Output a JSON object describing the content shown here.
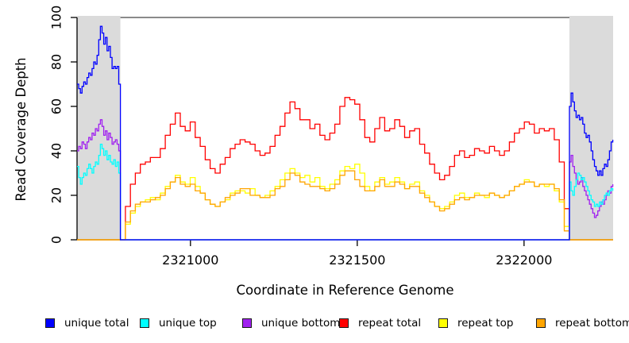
{
  "chart_data": {
    "type": "line",
    "title": "",
    "xlabel": "Coordinate in Reference Genome",
    "ylabel": "Read Coverage Depth",
    "xlim": [
      2320660,
      2322267
    ],
    "ylim": [
      0,
      100
    ],
    "x_ticks": [
      "2321000",
      "2321500",
      "2322000"
    ],
    "x_tick_values": [
      2321000,
      2321500,
      2322000
    ],
    "y_ticks": [
      "0",
      "20",
      "40",
      "60",
      "80",
      "100"
    ],
    "y_tick_values": [
      0,
      20,
      40,
      60,
      80,
      100
    ],
    "grid": false,
    "legend_position": "bottom",
    "axis_color": "#000000",
    "plot_background": "#FFFFFF",
    "shaded_regions": [
      {
        "name": "unique-flank-left",
        "from": 2320660,
        "to": 2320790,
        "color": "#DBDBDB"
      },
      {
        "name": "unique-flank-right",
        "from": 2322136,
        "to": 2322267,
        "color": "#DBDBDB"
      }
    ],
    "repeat_region_line": {
      "from": 2320790,
      "to": 2322136,
      "y": 100,
      "color": "#8A8A8A"
    },
    "legend": [
      {
        "label": "unique total",
        "color": "#0000FF"
      },
      {
        "label": "unique top",
        "color": "#00FFFF"
      },
      {
        "label": "unique bottom",
        "color": "#A020F0"
      },
      {
        "label": "repeat total",
        "color": "#FF0000"
      },
      {
        "label": "repeat top",
        "color": "#FFFF00"
      },
      {
        "label": "repeat bottom",
        "color": "#FFA500"
      }
    ],
    "series": [
      {
        "name": "repeat total",
        "color": "#FF0000",
        "segments": [
          {
            "x0": 2320660,
            "dx": 130,
            "v": [
              0,
              0
            ]
          },
          {
            "x0": 2320790,
            "dx": 14.95,
            "v": [
              0,
              15,
              25,
              30,
              34,
              35,
              37,
              37,
              41,
              47,
              52,
              57,
              51,
              49,
              53,
              46,
              42,
              36,
              32,
              30,
              34,
              37,
              41,
              43,
              45,
              44,
              43,
              40,
              38,
              39,
              42,
              47,
              51,
              57,
              62,
              59,
              54,
              54,
              50,
              52,
              47,
              45,
              48,
              52,
              60,
              64,
              63,
              61,
              54,
              46,
              44,
              50,
              55,
              49,
              50,
              54,
              51,
              46,
              49,
              50,
              43,
              39,
              34,
              30,
              27,
              29,
              33,
              38,
              40,
              37,
              38,
              41,
              40,
              39,
              42,
              40,
              38,
              40,
              44,
              48,
              50,
              53,
              52,
              48,
              50,
              49,
              50,
              45,
              35,
              14,
              0
            ]
          },
          {
            "x0": 2322136,
            "dx": 131,
            "v": [
              0,
              0
            ]
          }
        ]
      },
      {
        "name": "repeat top",
        "color": "#FFFF00",
        "segments": [
          {
            "x0": 2320660,
            "dx": 130,
            "v": [
              0,
              0
            ]
          },
          {
            "x0": 2320790,
            "dx": 14.95,
            "v": [
              0,
              7,
              12,
              15,
              17,
              18,
              19,
              18,
              21,
              24,
              26,
              29,
              26,
              25,
              28,
              24,
              21,
              18,
              16,
              15,
              17,
              18,
              21,
              22,
              22,
              21,
              23,
              20,
              19,
              20,
              22,
              24,
              27,
              30,
              32,
              30,
              28,
              29,
              26,
              28,
              24,
              23,
              25,
              27,
              31,
              33,
              32,
              34,
              30,
              24,
              22,
              26,
              28,
              25,
              26,
              28,
              26,
              23,
              25,
              26,
              22,
              20,
              17,
              15,
              14,
              15,
              17,
              20,
              21,
              19,
              19,
              21,
              20,
              19,
              21,
              20,
              19,
              20,
              22,
              24,
              25,
              27,
              26,
              24,
              25,
              24,
              25,
              22,
              17,
              6,
              0
            ]
          },
          {
            "x0": 2322136,
            "dx": 131,
            "v": [
              0,
              0
            ]
          }
        ]
      },
      {
        "name": "repeat bottom",
        "color": "#FFA500",
        "segments": [
          {
            "x0": 2320660,
            "dx": 130,
            "v": [
              0,
              0
            ]
          },
          {
            "x0": 2320790,
            "dx": 14.95,
            "v": [
              0,
              8,
              13,
              16,
              17,
              17,
              18,
              19,
              20,
              23,
              26,
              28,
              25,
              24,
              25,
              22,
              21,
              18,
              16,
              15,
              17,
              19,
              20,
              21,
              23,
              23,
              20,
              20,
              19,
              19,
              20,
              23,
              24,
              27,
              30,
              29,
              26,
              25,
              24,
              24,
              23,
              22,
              23,
              25,
              29,
              31,
              31,
              27,
              24,
              22,
              22,
              24,
              27,
              24,
              24,
              26,
              25,
              23,
              24,
              24,
              21,
              19,
              17,
              15,
              13,
              14,
              16,
              18,
              19,
              18,
              19,
              20,
              20,
              20,
              21,
              20,
              19,
              20,
              22,
              24,
              25,
              26,
              26,
              24,
              25,
              25,
              25,
              23,
              18,
              4,
              0
            ]
          },
          {
            "x0": 2322136,
            "dx": 131,
            "v": [
              0,
              0
            ]
          }
        ]
      },
      {
        "name": "unique bottom",
        "color": "#A020F0",
        "segments": [
          {
            "x0": 2320660,
            "dx": 5,
            "v": [
              40,
              42,
              41,
              44,
              43,
              41,
              44,
              46,
              45,
              48,
              47,
              50,
              49,
              52,
              54,
              51,
              47,
              49,
              45,
              48,
              46,
              43,
              44,
              45,
              43,
              40,
              37
            ]
          },
          {
            "x0": 2320790,
            "dx": 1346,
            "v": [
              0,
              0
            ]
          },
          {
            "x0": 2322136,
            "dx": 5,
            "v": [
              35,
              38,
              33,
              30,
              27,
              25,
              26,
              28,
              24,
              22,
              20,
              18,
              16,
              14,
              12,
              10,
              11,
              13,
              15,
              17,
              16,
              18,
              20,
              22,
              21,
              24,
              25
            ]
          }
        ]
      },
      {
        "name": "unique top",
        "color": "#00FFFF",
        "segments": [
          {
            "x0": 2320660,
            "dx": 5,
            "v": [
              33,
              28,
              25,
              28,
              30,
              29,
              32,
              34,
              32,
              30,
              33,
              35,
              34,
              38,
              43,
              41,
              38,
              40,
              36,
              38,
              35,
              34,
              36,
              33,
              35,
              30,
              25
            ]
          },
          {
            "x0": 2320790,
            "dx": 1346,
            "v": [
              0,
              0
            ]
          },
          {
            "x0": 2322136,
            "dx": 5,
            "v": [
              26,
              22,
              20,
              24,
              27,
              30,
              29,
              27,
              28,
              26,
              24,
              22,
              20,
              18,
              17,
              15,
              16,
              15,
              17,
              16,
              18,
              20,
              21,
              20,
              22,
              23,
              22
            ]
          }
        ]
      },
      {
        "name": "unique total",
        "color": "#0000FF",
        "segments": [
          {
            "x0": 2320660,
            "dx": 5,
            "v": [
              70,
              68,
              66,
              69,
              71,
              70,
              73,
              75,
              74,
              77,
              80,
              79,
              83,
              90,
              96,
              93,
              88,
              91,
              85,
              87,
              82,
              77,
              78,
              77,
              78,
              70,
              62
            ]
          },
          {
            "x0": 2320790,
            "dx": 1346,
            "v": [
              0,
              0
            ]
          },
          {
            "x0": 2322136,
            "dx": 5,
            "v": [
              60,
              66,
              62,
              58,
              55,
              56,
              54,
              55,
              52,
              48,
              46,
              47,
              44,
              40,
              36,
              33,
              31,
              29,
              31,
              29,
              32,
              34,
              33,
              36,
              40,
              44,
              45
            ]
          }
        ]
      }
    ]
  },
  "legend_layout_x": [
    57,
    176,
    305,
    427,
    552,
    675
  ]
}
